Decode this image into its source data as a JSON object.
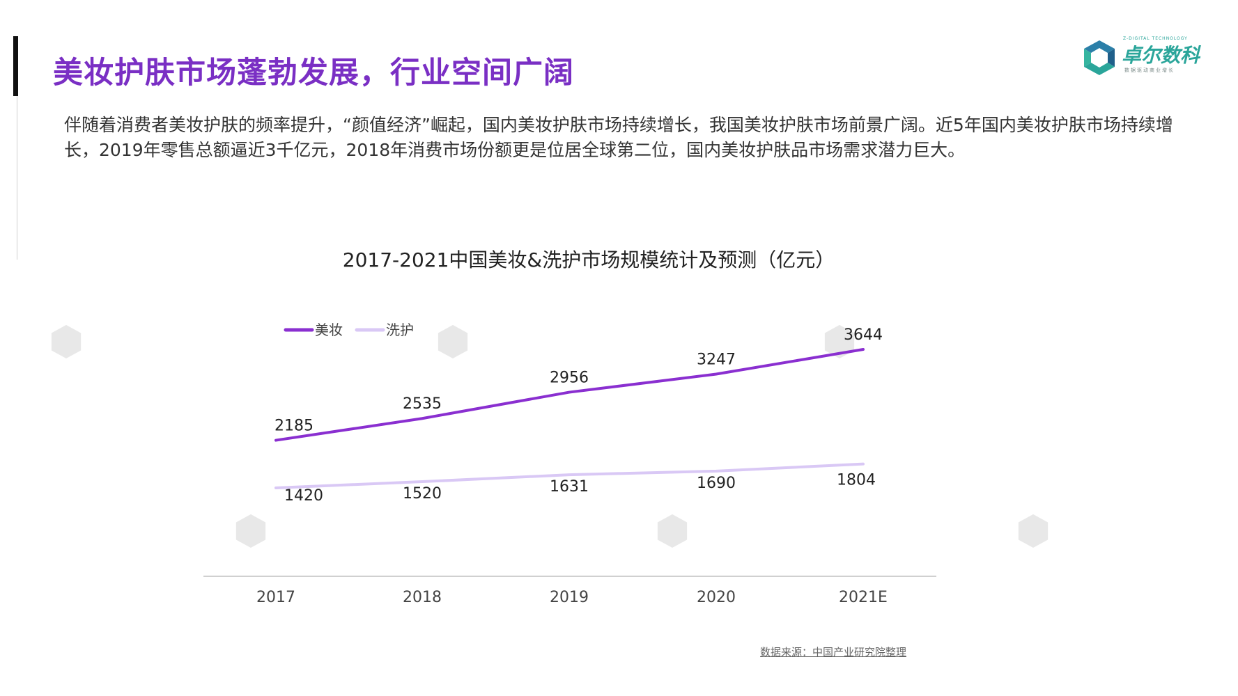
{
  "header": {
    "title": "美妆护肤市场蓬勃发展，行业空间广阔"
  },
  "logo": {
    "name": "卓尔数科",
    "en": "Z-DIGITAL TECHNOLOGY",
    "sub": "数据驱动商业增长"
  },
  "intro": "伴随着消费者美妆护肤的频率提升，“颜值经济”崛起，国内美妆护肤市场持续增长，我国美妆护肤市场前景广阔。近5年国内美妆护肤市场持续增长，2019年零售总额逼近3千亿元，2018年消费市场份额更是位居全球第二位，国内美妆护肤品市场需求潜力巨大。",
  "chart_data": {
    "type": "line",
    "title": "2017-2021中国美妆&洗护市场规模统计及预测（亿元）",
    "categories": [
      "2017",
      "2018",
      "2019",
      "2020",
      "2021E"
    ],
    "series": [
      {
        "name": "美妆",
        "values": [
          2185,
          2535,
          2956,
          3247,
          3644
        ],
        "color": "#8a2fd0"
      },
      {
        "name": "洗护",
        "values": [
          1420,
          1520,
          1631,
          1690,
          1804
        ],
        "color": "#d9c8f5"
      }
    ],
    "ylim": [
      0,
      4000
    ],
    "grid": false,
    "legend": "top-left"
  },
  "source": "数据来源：中国产业研究院整理"
}
